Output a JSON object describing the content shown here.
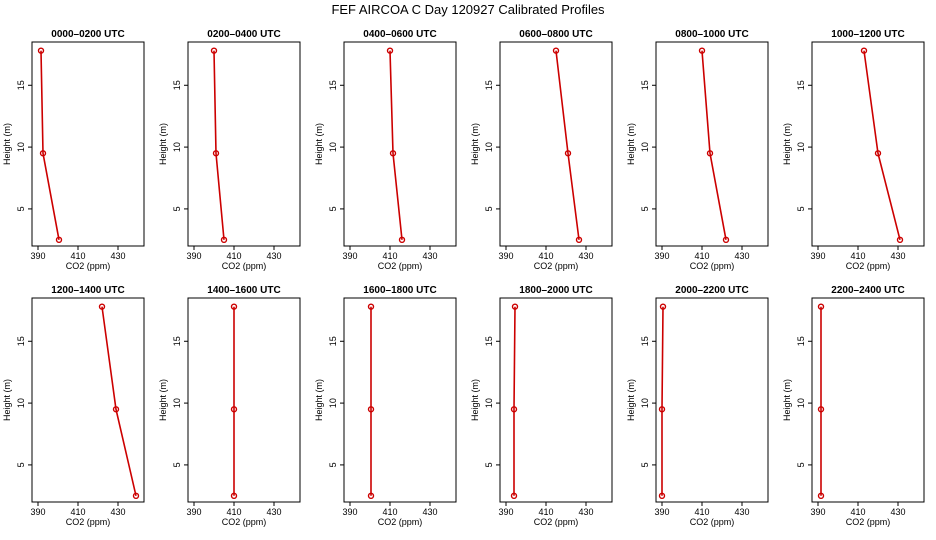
{
  "chart_data": {
    "type": "line",
    "title": "FEF AIRCOA C  Day 120927  Calibrated Profiles",
    "xlabel": "CO2 (ppm)",
    "ylabel": "Height (m)",
    "xlim": [
      387,
      443
    ],
    "ylim": [
      2,
      18.5
    ],
    "xticks": [
      390,
      410,
      430
    ],
    "yticks": [
      5,
      10,
      15
    ],
    "heights": [
      2.5,
      9.5,
      17.8
    ],
    "series_color": "#cc0000",
    "panels": [
      {
        "title": "0000–0200 UTC",
        "co2": [
          400.5,
          392.5,
          391.5
        ]
      },
      {
        "title": "0200–0400 UTC",
        "co2": [
          405,
          401,
          400
        ]
      },
      {
        "title": "0400–0600 UTC",
        "co2": [
          416,
          411.5,
          410
        ]
      },
      {
        "title": "0600–0800 UTC",
        "co2": [
          426.5,
          421,
          415
        ]
      },
      {
        "title": "0800–1000 UTC",
        "co2": [
          422,
          414,
          410
        ]
      },
      {
        "title": "1000–1200 UTC",
        "co2": [
          431,
          420,
          413
        ]
      },
      {
        "title": "1200–1400 UTC",
        "co2": [
          439,
          429,
          422
        ]
      },
      {
        "title": "1400–1600 UTC",
        "co2": [
          410,
          410,
          410
        ]
      },
      {
        "title": "1600–1800 UTC",
        "co2": [
          400.5,
          400.5,
          400.5
        ]
      },
      {
        "title": "1800–2000 UTC",
        "co2": [
          394,
          394,
          394.5
        ]
      },
      {
        "title": "2000–2200 UTC",
        "co2": [
          390,
          390,
          390.5
        ]
      },
      {
        "title": "2200–2400 UTC",
        "co2": [
          391.5,
          391.5,
          391.5
        ]
      }
    ]
  }
}
